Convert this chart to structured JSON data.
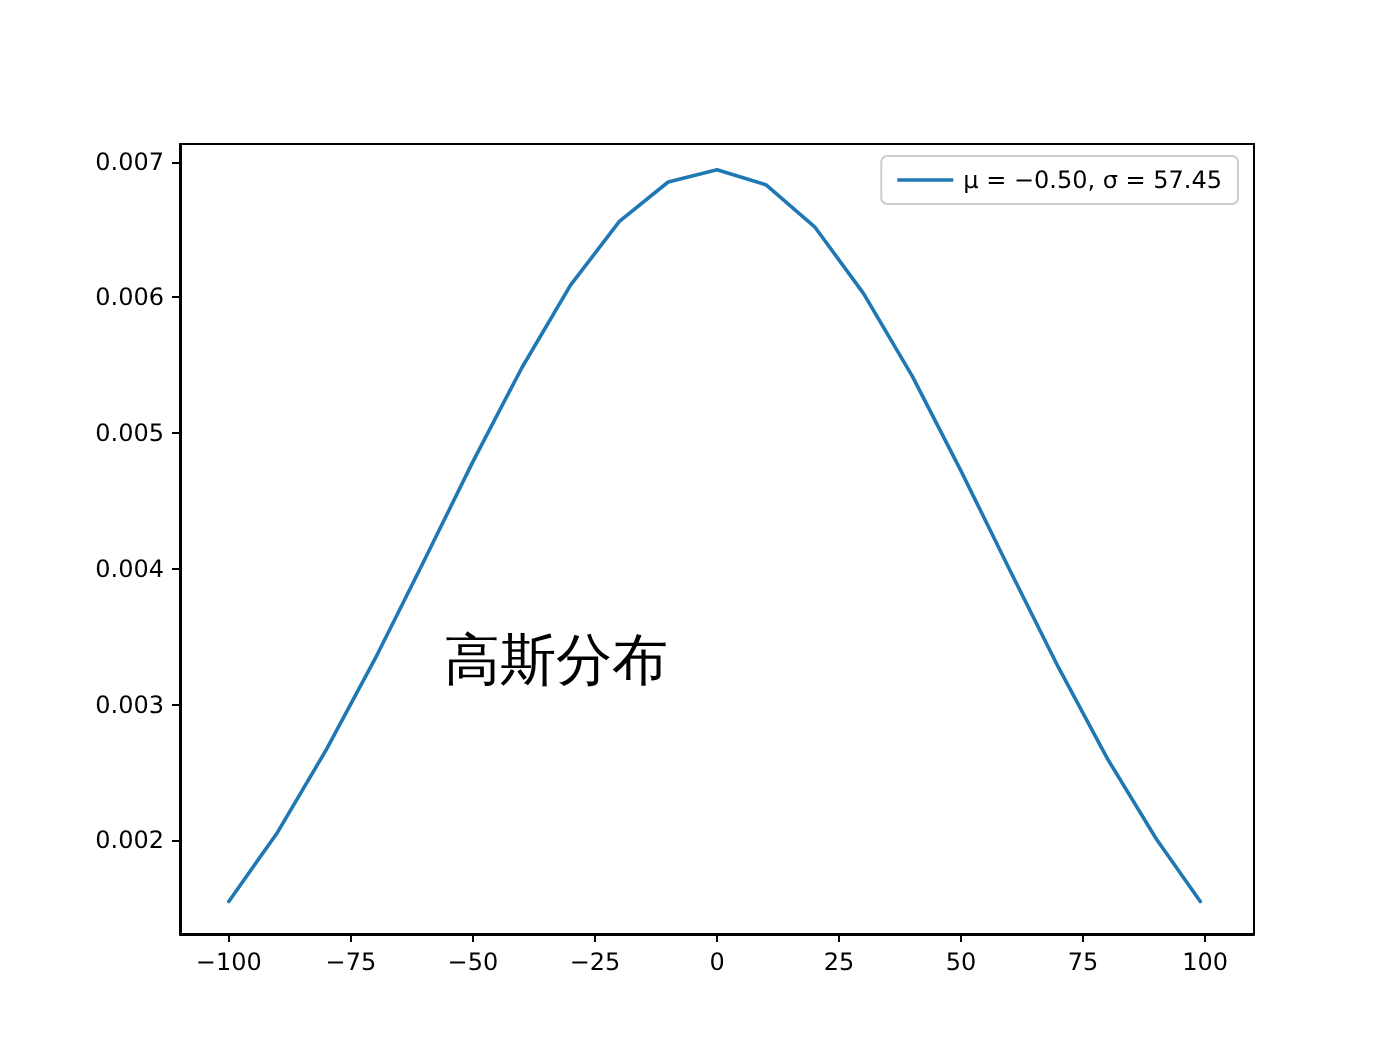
{
  "chart_data": {
    "type": "line",
    "x": [
      -100,
      -90,
      -80,
      -70,
      -60,
      -50,
      -40,
      -30,
      -20,
      -10,
      0,
      10,
      20,
      30,
      40,
      50,
      60,
      70,
      80,
      90,
      99
    ],
    "series": [
      {
        "name": "μ = −0.50, σ = 57.45",
        "color": "#1f77b4",
        "values": [
          0.00155,
          0.00206,
          0.00267,
          0.00334,
          0.00406,
          0.00479,
          0.00548,
          0.00609,
          0.00656,
          0.00685,
          0.00694,
          0.00683,
          0.00652,
          0.00603,
          0.00542,
          0.00472,
          0.00399,
          0.00327,
          0.0026,
          0.00201,
          0.00155
        ]
      }
    ],
    "xlim": [
      -110,
      110
    ],
    "ylim": [
      0.00131,
      0.00713
    ],
    "xticks": [
      {
        "value": -100,
        "label": "−100"
      },
      {
        "value": -75,
        "label": "−75"
      },
      {
        "value": -50,
        "label": "−50"
      },
      {
        "value": -25,
        "label": "−25"
      },
      0,
      25,
      50,
      75,
      100
    ],
    "yticks": [
      0.002,
      0.003,
      0.004,
      0.005,
      0.006,
      0.007
    ],
    "annotations": [
      "高斯分布"
    ],
    "legend": "top right",
    "grid": false,
    "marker": "none",
    "line_style": "solid"
  }
}
